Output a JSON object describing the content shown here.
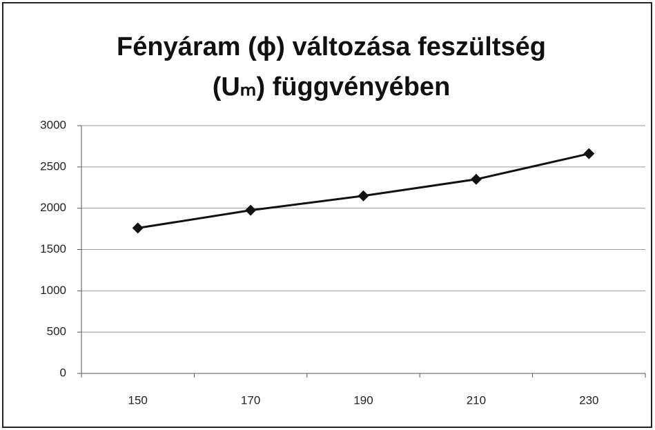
{
  "chart_data": {
    "type": "line",
    "title_lines": [
      "Fényáram (ϕ) változása feszültség",
      "(Uₘ) függvényében"
    ],
    "categories": [
      "150",
      "170",
      "190",
      "210",
      "230"
    ],
    "values": [
      1760,
      1975,
      2150,
      2350,
      2660
    ],
    "color": "#111111",
    "ylim": [
      0,
      3000
    ],
    "yticks": [
      0,
      500,
      1000,
      1500,
      2000,
      2500,
      3000
    ],
    "grid": true,
    "marker": "diamond"
  }
}
